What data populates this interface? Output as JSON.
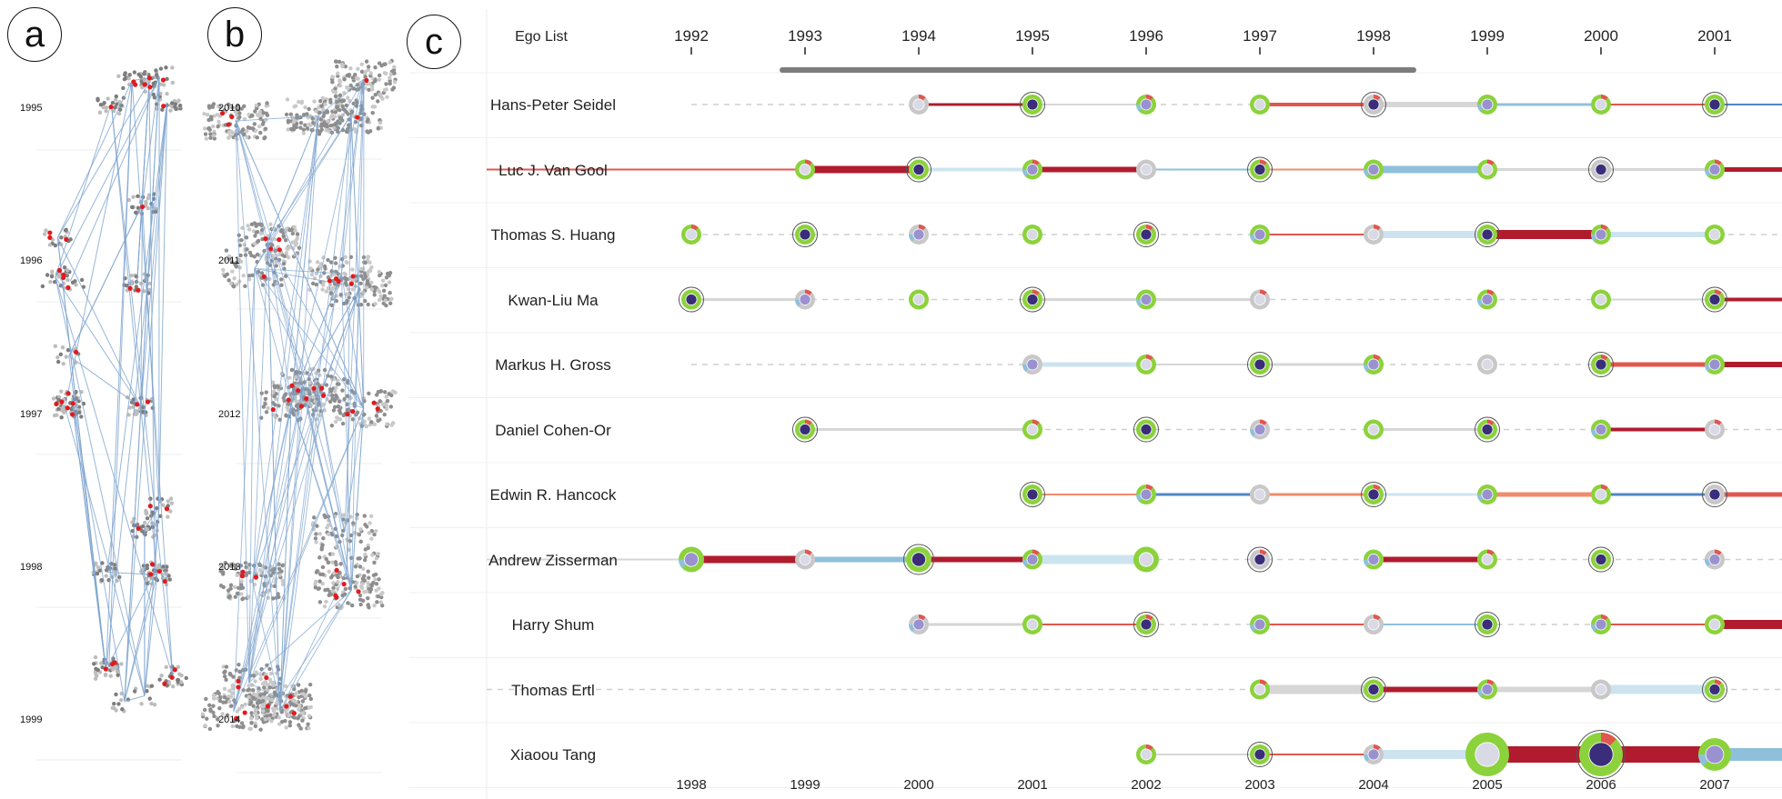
{
  "panel_a": {
    "letter": "a",
    "year_labels": [
      "1995",
      "1996",
      "1997",
      "1998",
      "1999"
    ]
  },
  "panel_b": {
    "letter": "b",
    "year_labels": [
      "2010",
      "2011",
      "2012",
      "2013",
      "2014"
    ]
  },
  "panel_c": {
    "letter": "c",
    "header": "Ego List",
    "top_years": [
      "1992",
      "1993",
      "1994",
      "1995",
      "1996",
      "1997",
      "1998",
      "1999",
      "2000",
      "2001"
    ],
    "bottom_years": [
      "1998",
      "1999",
      "2000",
      "2001",
      "2002",
      "2003",
      "2004",
      "2005",
      "2006",
      "2007"
    ],
    "egos": [
      "Hans-Peter Seidel",
      "Luc J. Van Gool",
      "Thomas S. Huang",
      "Kwan-Liu Ma",
      "Markus H. Gross",
      "Daniel Cohen-Or",
      "Edwin R. Hancock",
      "Andrew Zisserman",
      "Harry Shum",
      "Thomas Ertl",
      "Xiaoou Tang"
    ]
  },
  "colors": {
    "green": "#8cd23c",
    "dark_navy": "#3a2d7a",
    "lavender": "#9a92d0",
    "light_gray_fill": "#d9dae6",
    "red_strong": "#b01c2e",
    "red_mid": "#e0574f",
    "salmon": "#ef8c6c",
    "blue_light": "#cde4f0",
    "blue_mid": "#8fc0db",
    "blue_strong": "#4f86c6",
    "gray_link": "#d6d6d6",
    "node_stroke": "#666666",
    "scatter_gray": "#8a8a8a",
    "scatter_red": "#e31a1c",
    "line_blue": "#7ea4cf"
  }
}
